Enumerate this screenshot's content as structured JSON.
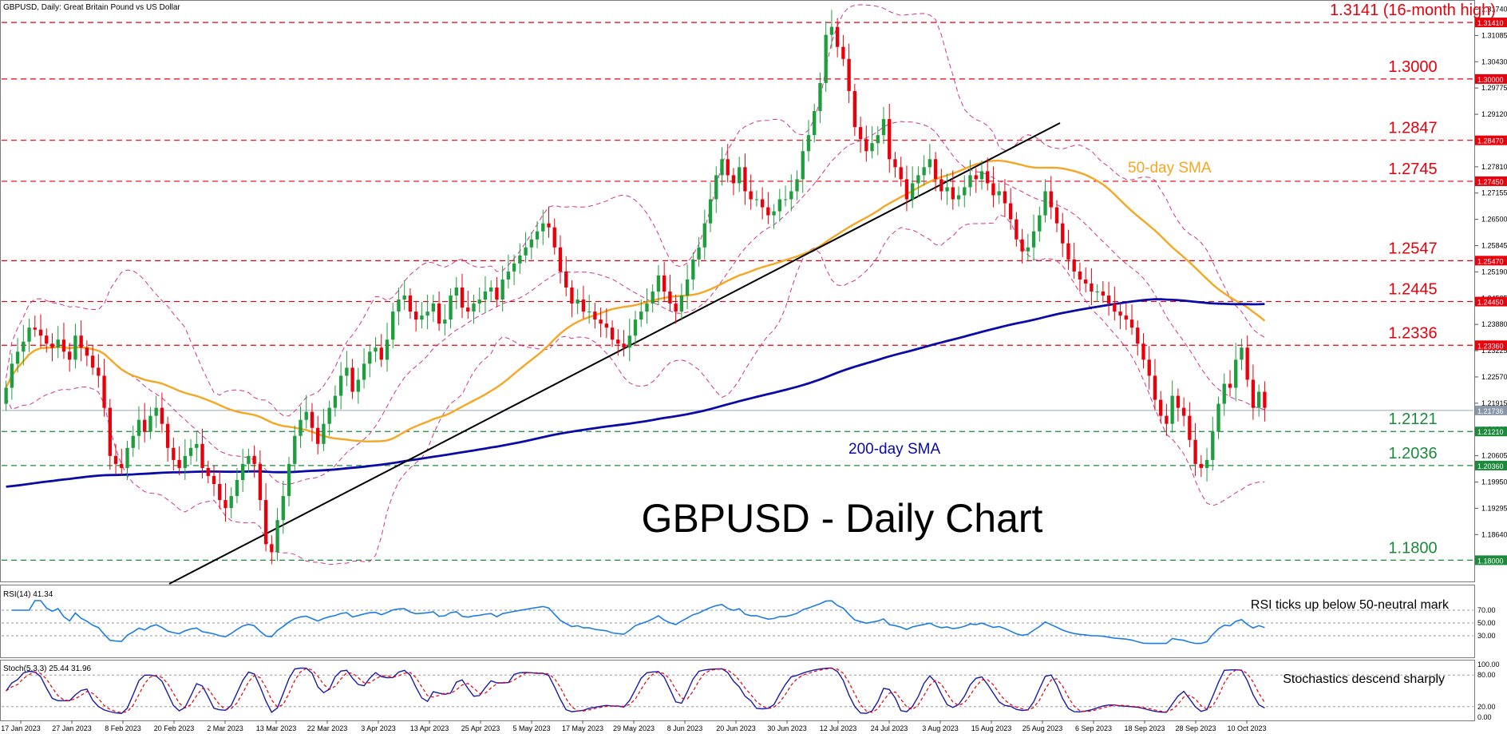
{
  "chart_data": [
    {
      "type": "candlestick",
      "header": "GBPUSD, Daily:  Great Britain Pound vs US Dollar",
      "title": "GBPUSD - Daily Chart",
      "ylim": [
        1.1755,
        1.3185
      ],
      "y_tick_labels": [
        "1.31740",
        "1.31085",
        "1.30430",
        "1.29775",
        "1.29120",
        "1.28465",
        "1.27810",
        "1.27155",
        "1.26500",
        "1.25845",
        "1.25190",
        "1.24535",
        "1.23880",
        "1.23225",
        "1.22570",
        "1.21915",
        "1.21260",
        "1.20605",
        "1.19950",
        "1.19295",
        "1.18640"
      ],
      "x_tick_labels": [
        "17 Jan 2023",
        "27 Jan 2023",
        "8 Feb 2023",
        "20 Feb 2023",
        "2 Mar 2023",
        "13 Mar 2023",
        "22 Mar 2023",
        "3 Apr 2023",
        "13 Apr 2023",
        "25 Apr 2023",
        "5 May 2023",
        "17 May 2023",
        "29 May 2023",
        "8 Jun 2023",
        "20 Jun 2023",
        "30 Jun 2023",
        "12 Jul 2023",
        "24 Jul 2023",
        "3 Aug 2023",
        "15 Aug 2023",
        "25 Aug 2023",
        "6 Sep 2023",
        "18 Sep 2023",
        "28 Sep 2023",
        "10 Oct 2023"
      ],
      "current_price": "1.21736",
      "levels": [
        {
          "value": 1.3141,
          "label": "1.3141 (16-month high)",
          "tag": "1.31410",
          "color": "#e8000b"
        },
        {
          "value": 1.3,
          "label": "1.3000",
          "tag": "1.30000",
          "color": "#e8000b"
        },
        {
          "value": 1.2847,
          "label": "1.2847",
          "tag": "1.28470",
          "color": "#e8000b"
        },
        {
          "value": 1.2745,
          "label": "1.2745",
          "tag": "1.27450",
          "color": "#e8000b"
        },
        {
          "value": 1.2547,
          "label": "1.2547",
          "tag": "1.25470",
          "color": "#e8000b"
        },
        {
          "value": 1.2445,
          "label": "1.2445",
          "tag": "1.24450",
          "color": "#e8000b"
        },
        {
          "value": 1.2336,
          "label": "1.2336",
          "tag": "1.23360",
          "color": "#e8000b"
        },
        {
          "value": 1.2121,
          "label": "1.2121",
          "tag": "1.21210",
          "color": "#1b8a3a"
        },
        {
          "value": 1.2036,
          "label": "1.2036",
          "tag": "1.20360",
          "color": "#1b8a3a"
        },
        {
          "value": 1.18,
          "label": "1.1800",
          "tag": "1.18000",
          "color": "#1b8a3a"
        }
      ],
      "annotations": {
        "sma50": "50-day SMA",
        "sma200": "200-day SMA"
      },
      "colors": {
        "up": "#1f9e3f",
        "down": "#e8000b",
        "sma50": "#f5a623",
        "sma200": "#0a0aa8",
        "bands": "#d4358a",
        "trend": "#000000"
      },
      "closes": [
        1.223,
        1.229,
        1.232,
        1.2345,
        1.238,
        1.2375,
        1.236,
        1.234,
        1.233,
        1.235,
        1.232,
        1.23,
        1.236,
        1.233,
        1.231,
        1.228,
        1.226,
        1.218,
        1.206,
        1.204,
        1.203,
        1.208,
        1.211,
        1.215,
        1.212,
        1.216,
        1.218,
        1.214,
        1.208,
        1.205,
        1.203,
        1.206,
        1.208,
        1.209,
        1.203,
        1.201,
        1.199,
        1.195,
        1.193,
        1.196,
        1.2,
        1.204,
        1.206,
        1.204,
        1.195,
        1.184,
        1.182,
        1.19,
        1.196,
        1.204,
        1.211,
        1.215,
        1.217,
        1.213,
        1.209,
        1.214,
        1.218,
        1.221,
        1.226,
        1.228,
        1.222,
        1.225,
        1.229,
        1.232,
        1.233,
        1.23,
        1.235,
        1.242,
        1.245,
        1.246,
        1.242,
        1.24,
        1.241,
        1.242,
        1.244,
        1.239,
        1.24,
        1.246,
        1.248,
        1.243,
        1.242,
        1.244,
        1.245,
        1.247,
        1.248,
        1.245,
        1.25,
        1.252,
        1.254,
        1.256,
        1.258,
        1.26,
        1.262,
        1.264,
        1.263,
        1.258,
        1.252,
        1.248,
        1.244,
        1.245,
        1.242,
        1.242,
        1.24,
        1.239,
        1.238,
        1.235,
        1.234,
        1.233,
        1.236,
        1.24,
        1.242,
        1.244,
        1.247,
        1.251,
        1.247,
        1.244,
        1.242,
        1.246,
        1.25,
        1.255,
        1.258,
        1.264,
        1.27,
        1.276,
        1.28,
        1.276,
        1.274,
        1.278,
        1.272,
        1.27,
        1.27,
        1.268,
        1.266,
        1.267,
        1.27,
        1.27,
        1.272,
        1.275,
        1.282,
        1.286,
        1.292,
        1.299,
        1.311,
        1.313,
        1.308,
        1.305,
        1.297,
        1.288,
        1.285,
        1.282,
        1.284,
        1.286,
        1.29,
        1.28,
        1.278,
        1.275,
        1.27,
        1.274,
        1.276,
        1.278,
        1.28,
        1.275,
        1.272,
        1.273,
        1.27,
        1.271,
        1.273,
        1.276,
        1.275,
        1.277,
        1.274,
        1.271,
        1.272,
        1.269,
        1.265,
        1.26,
        1.257,
        1.258,
        1.262,
        1.266,
        1.272,
        1.268,
        1.264,
        1.259,
        1.255,
        1.252,
        1.25,
        1.249,
        1.247,
        1.247,
        1.246,
        1.244,
        1.242,
        1.241,
        1.24,
        1.238,
        1.234,
        1.23,
        1.226,
        1.22,
        1.216,
        1.214,
        1.221,
        1.218,
        1.216,
        1.21,
        1.204,
        1.203,
        1.205,
        1.212,
        1.219,
        1.224,
        1.223,
        1.23,
        1.233,
        1.225,
        1.218,
        1.222,
        1.218
      ]
    },
    {
      "type": "line",
      "name": "RSI(14) 41.34",
      "ylim": [
        0,
        100
      ],
      "y_tick_labels": [
        "70.00",
        "50.00",
        "30.00"
      ],
      "levels": [
        70,
        50,
        30
      ],
      "annotation": "RSI ticks up below 50-neutral mark",
      "color": "#1e7ce6"
    },
    {
      "type": "line",
      "name": "Stoch(5,3,3) 25.44 31.96",
      "ylim": [
        0,
        100
      ],
      "y_tick_labels": [
        "100.00",
        "80.00",
        "20.00",
        "0.00"
      ],
      "levels": [
        80,
        20
      ],
      "annotation": "Stochastics descend sharply",
      "colors": {
        "k": "#1a1aa8",
        "d": "#e8000b"
      }
    }
  ]
}
